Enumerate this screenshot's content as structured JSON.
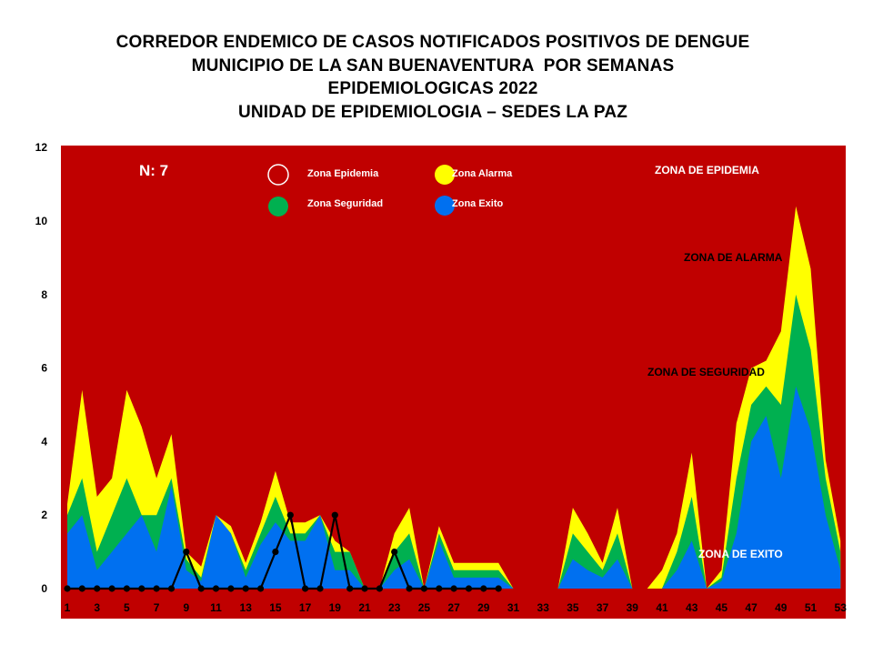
{
  "title_lines": [
    "CORREDOR ENDEMICO DE CASOS NOTIFICADOS POSITIVOS DE DENGUE",
    "MUNICIPIO DE LA SAN BUENAVENTURA  POR SEMANAS",
    "EPIDEMIOLOGICAS 2022",
    "UNIDAD DE EPIDEMIOLOGIA – SEDES LA PAZ"
  ],
  "chart_data": {
    "type": "area",
    "x": [
      1,
      2,
      3,
      4,
      5,
      6,
      7,
      8,
      9,
      10,
      11,
      12,
      13,
      14,
      15,
      16,
      17,
      18,
      19,
      20,
      21,
      22,
      23,
      24,
      25,
      26,
      27,
      28,
      29,
      30,
      31,
      32,
      33,
      34,
      35,
      36,
      37,
      38,
      39,
      40,
      41,
      42,
      43,
      44,
      45,
      46,
      47,
      48,
      49,
      50,
      51,
      52,
      53
    ],
    "x_tick_labels": [
      "1",
      "3",
      "5",
      "7",
      "9",
      "11",
      "13",
      "15",
      "17",
      "19",
      "21",
      "23",
      "25",
      "27",
      "29",
      "31",
      "33",
      "35",
      "37",
      "39",
      "41",
      "43",
      "45",
      "47",
      "49",
      "51",
      "53"
    ],
    "y_tick_labels": [
      "0",
      "2",
      "4",
      "6",
      "8",
      "10",
      "12"
    ],
    "ylim": [
      0,
      12
    ],
    "n_label": "N: 7",
    "zone_labels": {
      "epidemia": "ZONA DE EPIDEMIA",
      "alarma": "ZONA DE ALARMA",
      "seguridad": "ZONA DE  SEGURIDAD",
      "exito": "ZONA DE  EXITO"
    },
    "legend": [
      {
        "label": "Zona Epidemia",
        "color": "#c00000"
      },
      {
        "label": "Zona Alarma",
        "color": "#ffff00"
      },
      {
        "label": "Zona Seguridad",
        "color": "#00b050"
      },
      {
        "label": "Zona Exito",
        "color": "#0070f0"
      }
    ],
    "colors": {
      "epidemia": "#c00000",
      "alarma": "#ffff00",
      "seguridad": "#00b050",
      "exito": "#0070f0",
      "cases": "#000000"
    },
    "exito": [
      1.5,
      2.0,
      0.5,
      1.0,
      1.5,
      2.0,
      1.0,
      2.8,
      0.5,
      0.2,
      2.0,
      1.5,
      0.3,
      1.2,
      1.8,
      1.3,
      1.3,
      2.0,
      0.5,
      0.5,
      0,
      0,
      0.5,
      0.8,
      0,
      1.3,
      0.3,
      0.3,
      0.3,
      0.3,
      0,
      0,
      0,
      0,
      0.8,
      0.5,
      0.3,
      0.8,
      0,
      0,
      0,
      0.5,
      1.3,
      0,
      0.2,
      1.5,
      4.0,
      4.7,
      3.0,
      5.5,
      4.3,
      2.0,
      0.5
    ],
    "seguridad": [
      2.0,
      3.0,
      1.0,
      2.0,
      3.0,
      2.0,
      2.0,
      3.0,
      0.8,
      0.3,
      2.0,
      1.5,
      0.5,
      1.5,
      2.5,
      1.5,
      1.5,
      2.0,
      1.0,
      1.0,
      0,
      0,
      1.0,
      1.5,
      0,
      1.5,
      0.5,
      0.5,
      0.5,
      0.5,
      0,
      0,
      0,
      0,
      1.5,
      1.0,
      0.5,
      1.5,
      0,
      0,
      0,
      1.0,
      2.5,
      0,
      0.3,
      3.0,
      5.0,
      5.5,
      5.0,
      8.0,
      6.5,
      3.0,
      1.0
    ],
    "alarma": [
      2.3,
      5.4,
      2.5,
      3.0,
      5.4,
      4.4,
      3.0,
      4.2,
      1.0,
      0.6,
      2.0,
      1.7,
      0.7,
      1.8,
      3.2,
      1.8,
      1.8,
      2.0,
      1.3,
      1.0,
      0,
      0,
      1.5,
      2.2,
      0,
      1.7,
      0.7,
      0.7,
      0.7,
      0.7,
      0,
      0,
      0,
      0,
      2.2,
      1.5,
      0.7,
      2.2,
      0,
      0,
      0.5,
      1.5,
      3.7,
      0,
      0.5,
      4.5,
      6.0,
      6.2,
      7.0,
      10.4,
      8.7,
      3.5,
      1.3
    ],
    "cases": [
      0,
      0,
      0,
      0,
      0,
      0,
      0,
      0,
      1,
      0,
      0,
      0,
      0,
      0,
      1,
      2,
      0,
      0,
      2,
      0,
      0,
      0,
      1,
      0,
      0,
      0,
      0,
      0,
      0,
      0
    ]
  }
}
